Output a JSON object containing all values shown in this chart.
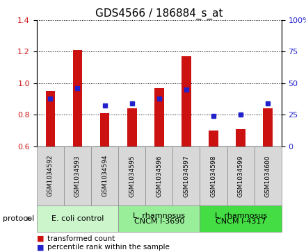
{
  "title": "GDS4566 / 186884_s_at",
  "samples": [
    "GSM1034592",
    "GSM1034593",
    "GSM1034594",
    "GSM1034595",
    "GSM1034596",
    "GSM1034597",
    "GSM1034598",
    "GSM1034599",
    "GSM1034600"
  ],
  "transformed_count": [
    0.95,
    1.21,
    0.81,
    0.84,
    0.97,
    1.17,
    0.7,
    0.71,
    0.84
  ],
  "percentile_rank": [
    0.9,
    0.97,
    0.86,
    0.87,
    0.9,
    0.96,
    0.79,
    0.8,
    0.87
  ],
  "ylim": [
    0.6,
    1.4
  ],
  "yticks_left": [
    0.6,
    0.8,
    1.0,
    1.2,
    1.4
  ],
  "yticks_right": [
    0,
    25,
    50,
    75,
    100
  ],
  "bar_color": "#cc1111",
  "dot_color": "#2222cc",
  "bar_bottom": 0.6,
  "groups_info": [
    {
      "indices": [
        0,
        1,
        2
      ],
      "label": "E. coli control",
      "color": "#ccf5cc"
    },
    {
      "indices": [
        3,
        4,
        5
      ],
      "label": "L. rhamnosus\nCNCM I-3690",
      "color": "#99ee99"
    },
    {
      "indices": [
        6,
        7,
        8
      ],
      "label": "L. rhamnosus\nCNCM I-4317",
      "color": "#44dd44"
    }
  ],
  "legend_bar_label": "transformed count",
  "legend_dot_label": "percentile rank within the sample",
  "protocol_label": "protocol",
  "title_fontsize": 11,
  "tick_fontsize": 8,
  "label_fontsize": 8
}
